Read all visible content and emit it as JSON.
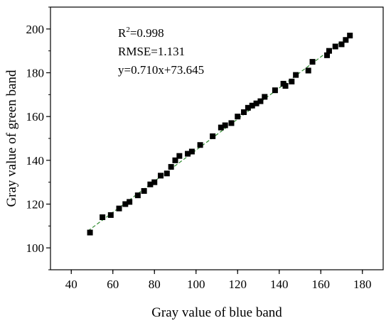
{
  "chart_data": {
    "type": "scatter",
    "xlabel": "Gray value of blue band",
    "ylabel": "Gray value of green band",
    "xlim": [
      30,
      190
    ],
    "ylim": [
      90,
      210
    ],
    "x_ticks": [
      40,
      60,
      80,
      100,
      120,
      140,
      160,
      180
    ],
    "y_ticks": [
      100,
      120,
      140,
      160,
      180,
      200
    ],
    "grid": false,
    "annotations": {
      "r2_base": "R",
      "r2_sup": "2",
      "r2_value": "=0.998",
      "rmse": "RMSE=1.131",
      "equation": "y=0.710x+73.645"
    },
    "fit_line": {
      "slope": 0.71,
      "intercept": 73.645,
      "x_range": [
        48,
        175
      ],
      "color": "#2e8b2e"
    },
    "marker_color": "#000000",
    "points": [
      [
        49,
        107
      ],
      [
        55,
        114
      ],
      [
        59,
        115
      ],
      [
        63,
        118
      ],
      [
        66,
        120
      ],
      [
        68,
        121
      ],
      [
        72,
        124
      ],
      [
        75,
        126
      ],
      [
        78,
        129
      ],
      [
        80,
        130
      ],
      [
        83,
        133
      ],
      [
        86,
        134
      ],
      [
        88,
        137
      ],
      [
        90,
        140
      ],
      [
        92,
        142
      ],
      [
        96,
        143
      ],
      [
        98,
        144
      ],
      [
        102,
        147
      ],
      [
        108,
        151
      ],
      [
        112,
        155
      ],
      [
        114,
        156
      ],
      [
        117,
        157
      ],
      [
        120,
        160
      ],
      [
        123,
        162
      ],
      [
        125,
        164
      ],
      [
        127,
        165
      ],
      [
        129,
        166
      ],
      [
        131,
        167
      ],
      [
        133,
        169
      ],
      [
        138,
        172
      ],
      [
        142,
        175
      ],
      [
        143,
        174
      ],
      [
        146,
        176
      ],
      [
        148,
        179
      ],
      [
        154,
        181
      ],
      [
        156,
        185
      ],
      [
        163,
        188
      ],
      [
        164,
        190
      ],
      [
        167,
        192
      ],
      [
        170,
        193
      ],
      [
        172,
        195
      ],
      [
        174,
        197
      ]
    ]
  }
}
